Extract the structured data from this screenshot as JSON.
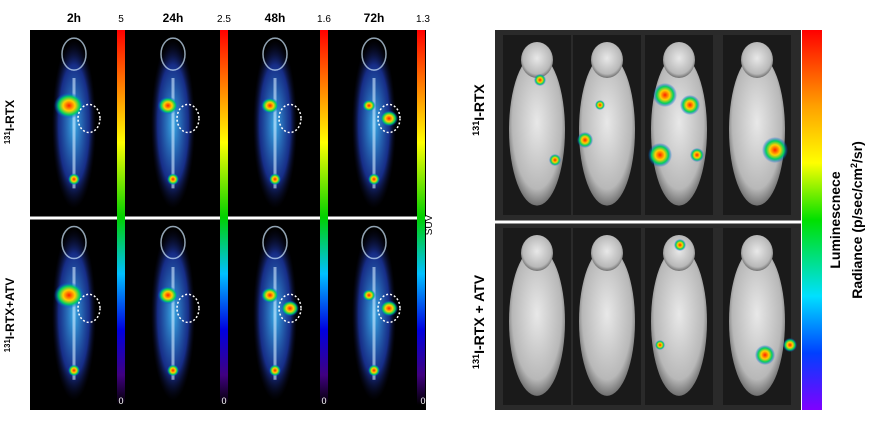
{
  "left_panel": {
    "timepoints": [
      "2h",
      "24h",
      "48h",
      "72h"
    ],
    "colorbars": [
      {
        "max": 5,
        "min": 0
      },
      {
        "max": 2.5,
        "min": 0
      },
      {
        "max": 1.6,
        "min": 0
      },
      {
        "max": 1.3,
        "min": 0
      }
    ],
    "unit": "SUV",
    "rows": [
      {
        "sup": "131",
        "label": "I-RTX"
      },
      {
        "sup": "131",
        "label": "I-RTX+ATV"
      }
    ]
  },
  "right_panel": {
    "rows": [
      {
        "sup": "131",
        "label": "I-RTX"
      },
      {
        "sup": "131",
        "label": "I-RTX + ATV"
      }
    ],
    "colorbar_title": "Luminescnece",
    "colorbar_label": {
      "text": "Radiance (p/sec/cm",
      "sup": "2",
      "end": "/sr)"
    }
  }
}
